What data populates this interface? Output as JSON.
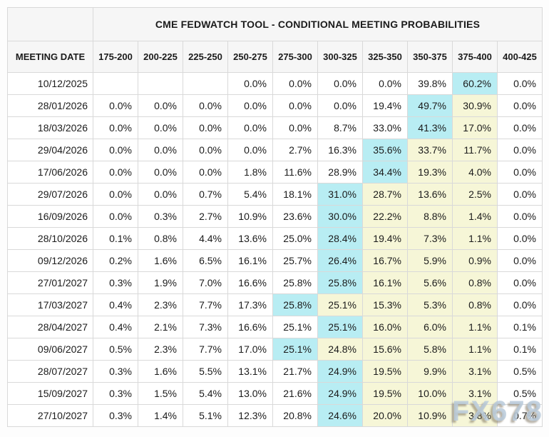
{
  "title": "CME FEDWATCH TOOL - CONDITIONAL MEETING PROBABILITIES",
  "watermark": "FX678",
  "colors": {
    "highlight_cyan": "#b8edf3",
    "highlight_yellow": "#f6f6d7",
    "header_background": "#f6f6f6",
    "grid_border": "#d9d9d9"
  },
  "table": {
    "date_header": "MEETING DATE",
    "rate_headers": [
      "175-200",
      "200-225",
      "225-250",
      "250-275",
      "275-300",
      "300-325",
      "325-350",
      "350-375",
      "375-400",
      "400-425"
    ],
    "rows": [
      {
        "date": "10/12/2025",
        "values": [
          "",
          "",
          "",
          "0.0%",
          "0.0%",
          "0.0%",
          "0.0%",
          "39.8%",
          "60.2%",
          "0.0%"
        ],
        "hl": [
          "",
          "",
          "",
          "",
          "",
          "",
          "",
          "",
          "c",
          ""
        ]
      },
      {
        "date": "28/01/2026",
        "values": [
          "0.0%",
          "0.0%",
          "0.0%",
          "0.0%",
          "0.0%",
          "0.0%",
          "19.4%",
          "49.7%",
          "30.9%",
          "0.0%"
        ],
        "hl": [
          "",
          "",
          "",
          "",
          "",
          "",
          "",
          "c",
          "y",
          ""
        ]
      },
      {
        "date": "18/03/2026",
        "values": [
          "0.0%",
          "0.0%",
          "0.0%",
          "0.0%",
          "0.0%",
          "8.7%",
          "33.0%",
          "41.3%",
          "17.0%",
          "0.0%"
        ],
        "hl": [
          "",
          "",
          "",
          "",
          "",
          "",
          "",
          "c",
          "y",
          ""
        ]
      },
      {
        "date": "29/04/2026",
        "values": [
          "0.0%",
          "0.0%",
          "0.0%",
          "0.0%",
          "2.7%",
          "16.3%",
          "35.6%",
          "33.7%",
          "11.7%",
          "0.0%"
        ],
        "hl": [
          "",
          "",
          "",
          "",
          "",
          "",
          "c",
          "y",
          "y",
          ""
        ]
      },
      {
        "date": "17/06/2026",
        "values": [
          "0.0%",
          "0.0%",
          "0.0%",
          "1.8%",
          "11.6%",
          "28.9%",
          "34.4%",
          "19.3%",
          "4.0%",
          "0.0%"
        ],
        "hl": [
          "",
          "",
          "",
          "",
          "",
          "",
          "c",
          "y",
          "y",
          ""
        ]
      },
      {
        "date": "29/07/2026",
        "values": [
          "0.0%",
          "0.0%",
          "0.7%",
          "5.4%",
          "18.1%",
          "31.0%",
          "28.7%",
          "13.6%",
          "2.5%",
          "0.0%"
        ],
        "hl": [
          "",
          "",
          "",
          "",
          "",
          "c",
          "y",
          "y",
          "y",
          ""
        ]
      },
      {
        "date": "16/09/2026",
        "values": [
          "0.0%",
          "0.3%",
          "2.7%",
          "10.9%",
          "23.6%",
          "30.0%",
          "22.2%",
          "8.8%",
          "1.4%",
          "0.0%"
        ],
        "hl": [
          "",
          "",
          "",
          "",
          "",
          "c",
          "y",
          "y",
          "y",
          ""
        ]
      },
      {
        "date": "28/10/2026",
        "values": [
          "0.1%",
          "0.8%",
          "4.4%",
          "13.6%",
          "25.0%",
          "28.4%",
          "19.4%",
          "7.3%",
          "1.1%",
          "0.0%"
        ],
        "hl": [
          "",
          "",
          "",
          "",
          "",
          "c",
          "y",
          "y",
          "y",
          ""
        ]
      },
      {
        "date": "09/12/2026",
        "values": [
          "0.2%",
          "1.6%",
          "6.5%",
          "16.1%",
          "25.7%",
          "26.4%",
          "16.7%",
          "5.9%",
          "0.9%",
          "0.0%"
        ],
        "hl": [
          "",
          "",
          "",
          "",
          "",
          "c",
          "y",
          "y",
          "y",
          ""
        ]
      },
      {
        "date": "27/01/2027",
        "values": [
          "0.3%",
          "1.9%",
          "7.0%",
          "16.6%",
          "25.8%",
          "25.8%",
          "16.1%",
          "5.6%",
          "0.8%",
          "0.0%"
        ],
        "hl": [
          "",
          "",
          "",
          "",
          "",
          "c",
          "y",
          "y",
          "y",
          ""
        ]
      },
      {
        "date": "17/03/2027",
        "values": [
          "0.4%",
          "2.3%",
          "7.7%",
          "17.3%",
          "25.8%",
          "25.1%",
          "15.3%",
          "5.3%",
          "0.8%",
          "0.0%"
        ],
        "hl": [
          "",
          "",
          "",
          "",
          "c",
          "y",
          "y",
          "y",
          "y",
          ""
        ]
      },
      {
        "date": "28/04/2027",
        "values": [
          "0.4%",
          "2.1%",
          "7.3%",
          "16.6%",
          "25.1%",
          "25.1%",
          "16.0%",
          "6.0%",
          "1.1%",
          "0.1%"
        ],
        "hl": [
          "",
          "",
          "",
          "",
          "",
          "c",
          "y",
          "y",
          "y",
          ""
        ]
      },
      {
        "date": "09/06/2027",
        "values": [
          "0.5%",
          "2.3%",
          "7.7%",
          "17.0%",
          "25.1%",
          "24.8%",
          "15.6%",
          "5.8%",
          "1.1%",
          "0.1%"
        ],
        "hl": [
          "",
          "",
          "",
          "",
          "c",
          "y",
          "y",
          "y",
          "y",
          ""
        ]
      },
      {
        "date": "28/07/2027",
        "values": [
          "0.3%",
          "1.6%",
          "5.5%",
          "13.1%",
          "21.7%",
          "24.9%",
          "19.5%",
          "9.9%",
          "3.1%",
          "0.5%"
        ],
        "hl": [
          "",
          "",
          "",
          "",
          "",
          "c",
          "y",
          "y",
          "y",
          ""
        ]
      },
      {
        "date": "15/09/2027",
        "values": [
          "0.3%",
          "1.5%",
          "5.4%",
          "13.0%",
          "21.6%",
          "24.9%",
          "19.5%",
          "10.0%",
          "3.1%",
          "0.5%"
        ],
        "hl": [
          "",
          "",
          "",
          "",
          "",
          "c",
          "y",
          "y",
          "y",
          ""
        ]
      },
      {
        "date": "27/10/2027",
        "values": [
          "0.3%",
          "1.4%",
          "5.1%",
          "12.3%",
          "20.8%",
          "24.6%",
          "20.0%",
          "10.9%",
          "3.8%",
          "0.7%"
        ],
        "hl": [
          "",
          "",
          "",
          "",
          "",
          "c",
          "y",
          "y",
          "y",
          ""
        ]
      }
    ]
  }
}
